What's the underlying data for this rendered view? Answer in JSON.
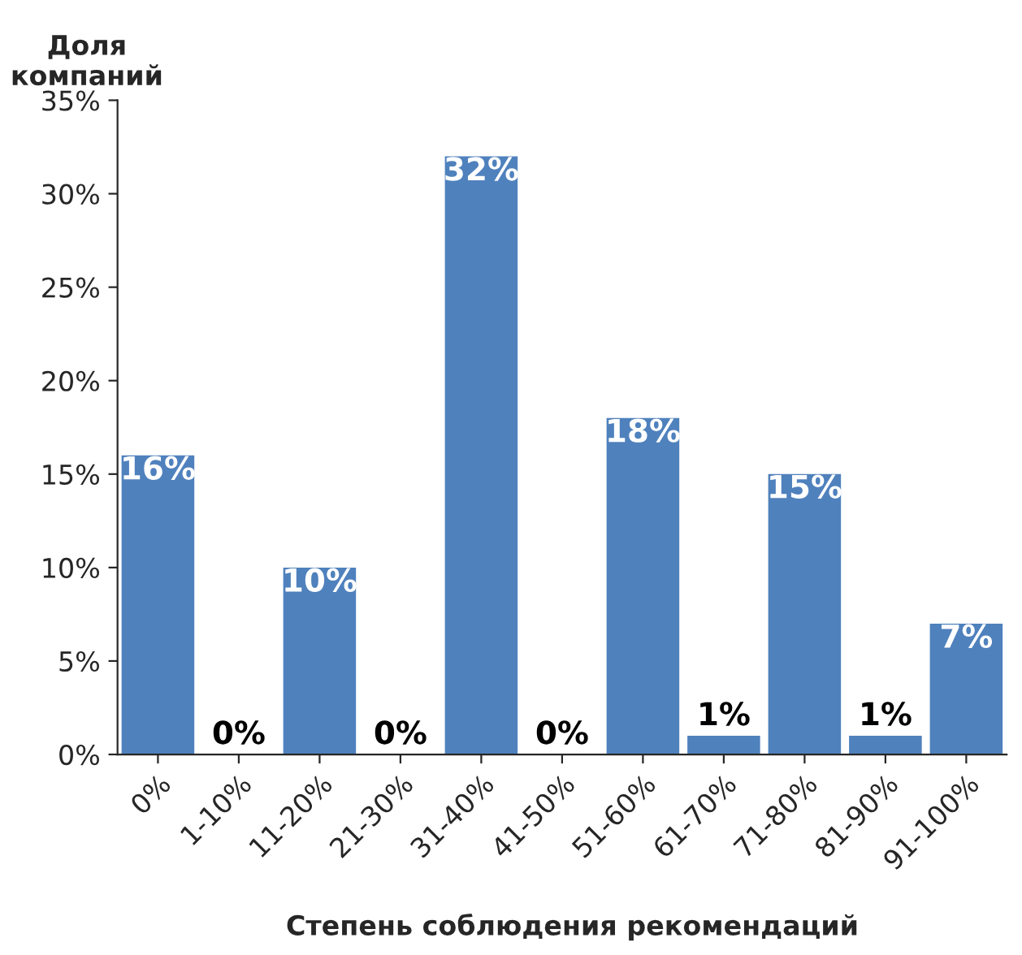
{
  "chart_data": {
    "type": "bar",
    "ylabel": "Доля\nкомпаний",
    "xlabel": "Степень соблюдения рекомендаций",
    "categories": [
      "0%",
      "1-10%",
      "11-20%",
      "21-30%",
      "31-40%",
      "41-50%",
      "51-60%",
      "61-70%",
      "71-80%",
      "81-90%",
      "91-100%"
    ],
    "values": [
      16,
      0,
      10,
      0,
      32,
      0,
      18,
      1,
      15,
      1,
      7
    ],
    "value_labels": [
      "16%",
      "0%",
      "10%",
      "0%",
      "32%",
      "0%",
      "18%",
      "1%",
      "15%",
      "1%",
      "7%"
    ],
    "color": "#4f81bd",
    "ylim": [
      0,
      35
    ],
    "yticks": [
      {
        "value": 0,
        "label": "0%"
      },
      {
        "value": 5,
        "label": "5%"
      },
      {
        "value": 10,
        "label": "10%"
      },
      {
        "value": 15,
        "label": "15%"
      },
      {
        "value": 20,
        "label": "20%"
      },
      {
        "value": 25,
        "label": "25%"
      },
      {
        "value": 30,
        "label": "30%"
      },
      {
        "value": 35,
        "label": "35%"
      }
    ],
    "grid": false,
    "legend": false
  }
}
